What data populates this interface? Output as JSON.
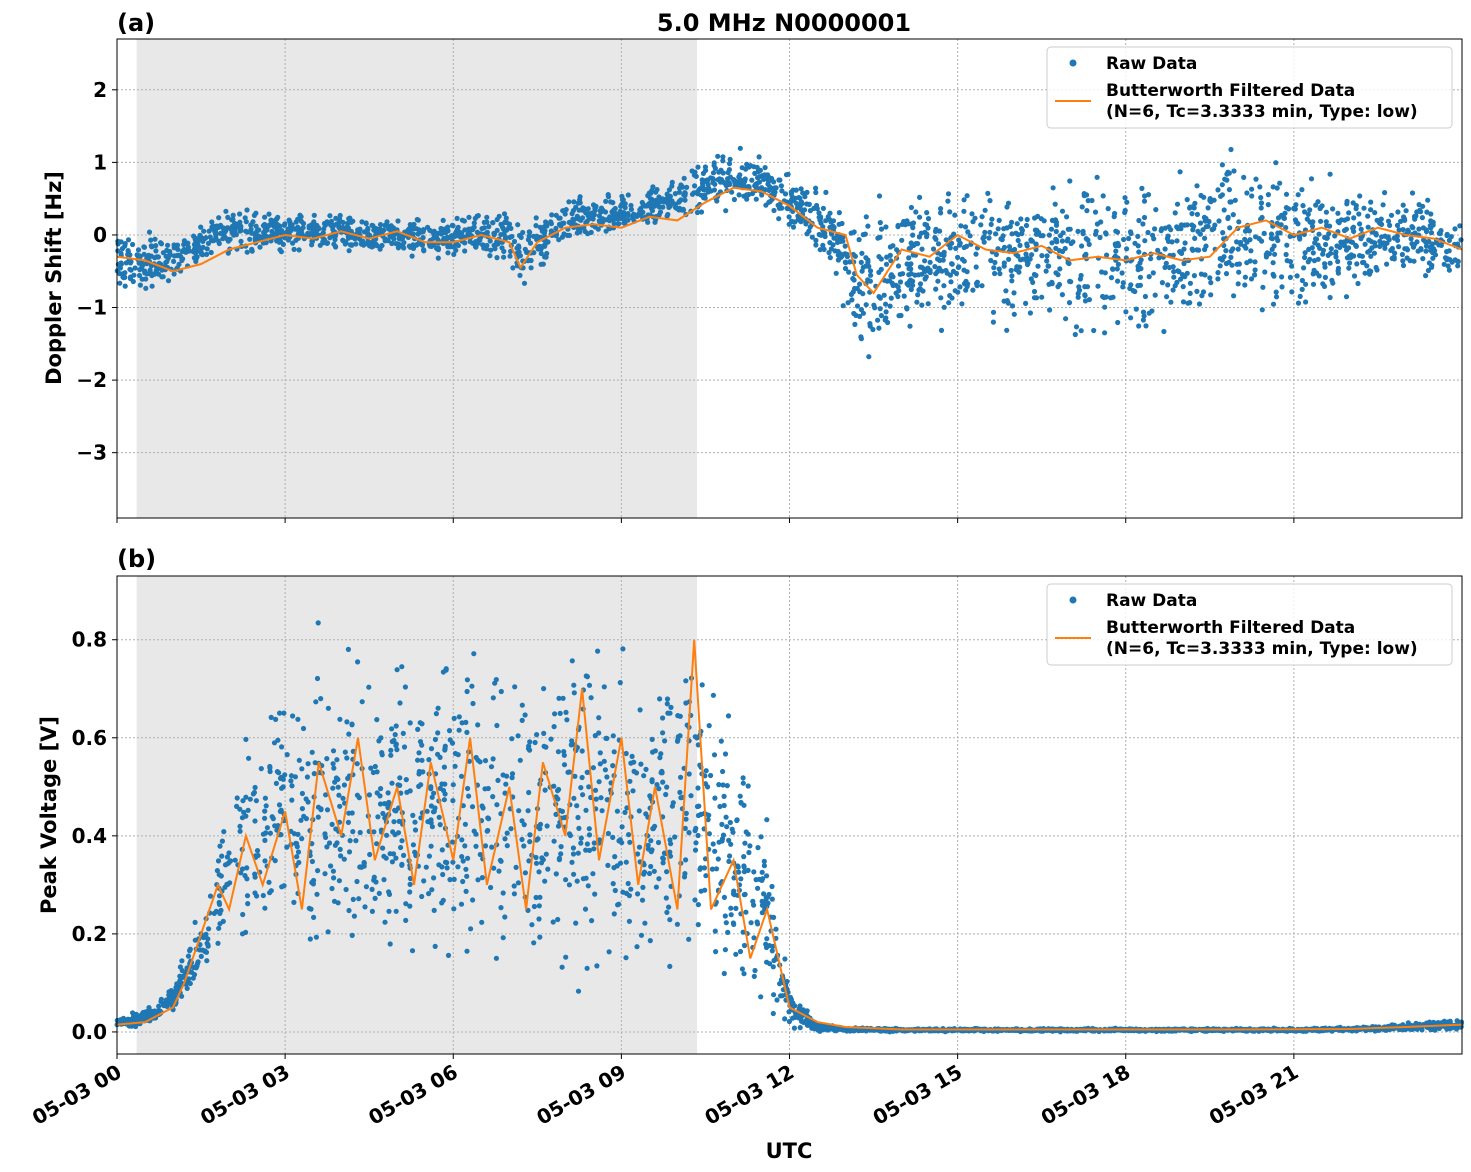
{
  "figure": {
    "title": "5.0 MHz N0000001",
    "xlabel": "UTC",
    "x_tick_labels": [
      "05-03 00",
      "05-03 03",
      "05-03 06",
      "05-03 09",
      "05-03 12",
      "05-03 15",
      "05-03 18",
      "05-03 21"
    ]
  },
  "colors": {
    "raw": "#1f77b4",
    "filtered": "#ff7f0e",
    "shade": "#e8e8e8",
    "grid": "#b0b0b0"
  },
  "chart_data": [
    {
      "panel_label": "(a)",
      "type": "scatter",
      "ylabel": "Doppler Shift [Hz]",
      "x_unit": "UTC hours on 05-03",
      "xlim": [
        0,
        24
      ],
      "ylim": [
        -3.9,
        2.7
      ],
      "y_ticks": [
        2,
        1,
        0,
        -1,
        -2,
        -3
      ],
      "y_tick_labels": [
        "2",
        "1",
        "0",
        "−1",
        "−2",
        "−3"
      ],
      "grid": true,
      "legend_position": "top-right",
      "shaded_x_range": [
        0.35,
        10.35
      ],
      "legend": [
        "Raw Data",
        "Butterworth Filtered Data",
        "(N=6, Tc=3.3333 min, Type: low)"
      ],
      "series": [
        {
          "name": "Raw Data",
          "kind": "scatter-envelope",
          "x": [
            0,
            0.5,
            1,
            1.5,
            2,
            3,
            4,
            5,
            6,
            7,
            7.2,
            8,
            9,
            10,
            10.5,
            11,
            11.5,
            12,
            12.8,
            13.2,
            13.5,
            14,
            15,
            16,
            17,
            18,
            19,
            19.8,
            20.5,
            21,
            22,
            23,
            24
          ],
          "upper": [
            0.2,
            0.15,
            0.1,
            0.25,
            0.45,
            0.4,
            0.35,
            0.3,
            0.3,
            0.45,
            0.3,
            0.55,
            0.65,
            0.85,
            1.2,
            1.3,
            1.15,
            0.9,
            0.6,
            0.5,
            0.85,
            0.8,
            0.8,
            1.0,
            1.1,
            1.1,
            1.2,
            1.5,
            1.3,
            1.1,
            1.0,
            0.8,
            0.3
          ],
          "lower": [
            -0.9,
            -0.9,
            -0.85,
            -0.5,
            -0.35,
            -0.3,
            -0.3,
            -0.35,
            -0.4,
            -0.45,
            -0.9,
            -0.2,
            -0.05,
            0.1,
            0.2,
            0.25,
            0.3,
            -0.1,
            -0.5,
            -2.0,
            -2.0,
            -1.6,
            -1.4,
            -1.5,
            -1.7,
            -1.8,
            -1.5,
            -1.2,
            -1.2,
            -1.3,
            -1.1,
            -0.8,
            -0.7
          ]
        },
        {
          "name": "Butterworth Filtered Data",
          "x": [
            0,
            0.5,
            1,
            1.5,
            2,
            2.5,
            3,
            3.5,
            4,
            4.5,
            5,
            5.5,
            6,
            6.5,
            7,
            7.2,
            7.5,
            8,
            8.5,
            9,
            9.5,
            10,
            10.5,
            11,
            11.5,
            12,
            12.5,
            13,
            13.2,
            13.5,
            14,
            14.5,
            15,
            15.5,
            16,
            16.5,
            17,
            17.5,
            18,
            18.5,
            19,
            19.5,
            20,
            20.5,
            21,
            21.5,
            22,
            22.5,
            23,
            23.5,
            24
          ],
          "y": [
            -0.3,
            -0.35,
            -0.5,
            -0.4,
            -0.2,
            -0.1,
            0.0,
            -0.05,
            0.05,
            -0.05,
            0.05,
            -0.1,
            -0.1,
            0.0,
            -0.1,
            -0.45,
            -0.1,
            0.1,
            0.15,
            0.1,
            0.25,
            0.2,
            0.45,
            0.65,
            0.6,
            0.4,
            0.1,
            0.0,
            -0.55,
            -0.8,
            -0.2,
            -0.3,
            0.0,
            -0.2,
            -0.25,
            -0.15,
            -0.35,
            -0.3,
            -0.35,
            -0.25,
            -0.35,
            -0.3,
            0.1,
            0.2,
            0.0,
            0.1,
            -0.05,
            0.1,
            0.0,
            -0.05,
            -0.2
          ]
        }
      ]
    },
    {
      "panel_label": "(b)",
      "type": "scatter",
      "ylabel": "Peak Voltage [V]",
      "x_unit": "UTC hours on 05-03",
      "xlim": [
        0,
        24
      ],
      "ylim": [
        -0.045,
        0.93
      ],
      "y_ticks": [
        0.0,
        0.2,
        0.4,
        0.6,
        0.8
      ],
      "y_tick_labels": [
        "0.0",
        "0.2",
        "0.4",
        "0.6",
        "0.8"
      ],
      "grid": true,
      "legend_position": "top-right",
      "shaded_x_range": [
        0.35,
        10.35
      ],
      "legend": [
        "Raw Data",
        "Butterworth Filtered Data",
        "(N=6, Tc=3.3333 min, Type: low)"
      ],
      "series": [
        {
          "name": "Raw Data",
          "kind": "scatter-envelope",
          "x": [
            0,
            0.5,
            1,
            1.3,
            1.6,
            2,
            2.5,
            3,
            3.5,
            4,
            4.5,
            5,
            5.5,
            6,
            6.5,
            7,
            7.5,
            8,
            8.5,
            9,
            9.5,
            10,
            10.3,
            10.6,
            11,
            11.5,
            12,
            12.5,
            13,
            14,
            16,
            18,
            20,
            22,
            23,
            24
          ],
          "upper": [
            0.03,
            0.05,
            0.1,
            0.2,
            0.3,
            0.55,
            0.7,
            0.78,
            0.85,
            0.84,
            0.82,
            0.84,
            0.84,
            0.86,
            0.85,
            0.86,
            0.84,
            0.88,
            0.89,
            0.88,
            0.8,
            0.86,
            0.88,
            0.79,
            0.7,
            0.52,
            0.1,
            0.02,
            0.01,
            0.008,
            0.008,
            0.008,
            0.008,
            0.01,
            0.02,
            0.03
          ],
          "lower": [
            0.005,
            0.01,
            0.03,
            0.06,
            0.1,
            0.15,
            0.12,
            0.1,
            0.05,
            0.05,
            0.04,
            0.05,
            0.04,
            0.05,
            0.03,
            0.05,
            0.04,
            0.05,
            0.06,
            0.05,
            0.08,
            0.1,
            0.12,
            0.05,
            0.02,
            0.01,
            0.0,
            0.0,
            0.0,
            0.0,
            0.0,
            0.0,
            0.0,
            0.0,
            0.0,
            0.0
          ]
        },
        {
          "name": "Butterworth Filtered Data",
          "x": [
            0,
            0.5,
            1,
            1.2,
            1.5,
            1.8,
            2,
            2.3,
            2.6,
            3,
            3.3,
            3.6,
            4,
            4.3,
            4.6,
            5,
            5.3,
            5.6,
            6,
            6.3,
            6.6,
            7,
            7.3,
            7.6,
            8,
            8.3,
            8.6,
            9,
            9.3,
            9.6,
            10,
            10.3,
            10.6,
            11,
            11.3,
            11.6,
            12,
            12.5,
            13,
            14,
            16,
            18,
            20,
            22,
            23,
            24
          ],
          "y": [
            0.015,
            0.02,
            0.05,
            0.1,
            0.2,
            0.3,
            0.25,
            0.4,
            0.3,
            0.45,
            0.25,
            0.55,
            0.4,
            0.6,
            0.35,
            0.5,
            0.3,
            0.55,
            0.35,
            0.6,
            0.3,
            0.5,
            0.25,
            0.55,
            0.4,
            0.7,
            0.35,
            0.6,
            0.3,
            0.5,
            0.25,
            0.8,
            0.25,
            0.35,
            0.15,
            0.25,
            0.05,
            0.02,
            0.01,
            0.005,
            0.005,
            0.005,
            0.005,
            0.006,
            0.01,
            0.015
          ]
        }
      ]
    }
  ]
}
